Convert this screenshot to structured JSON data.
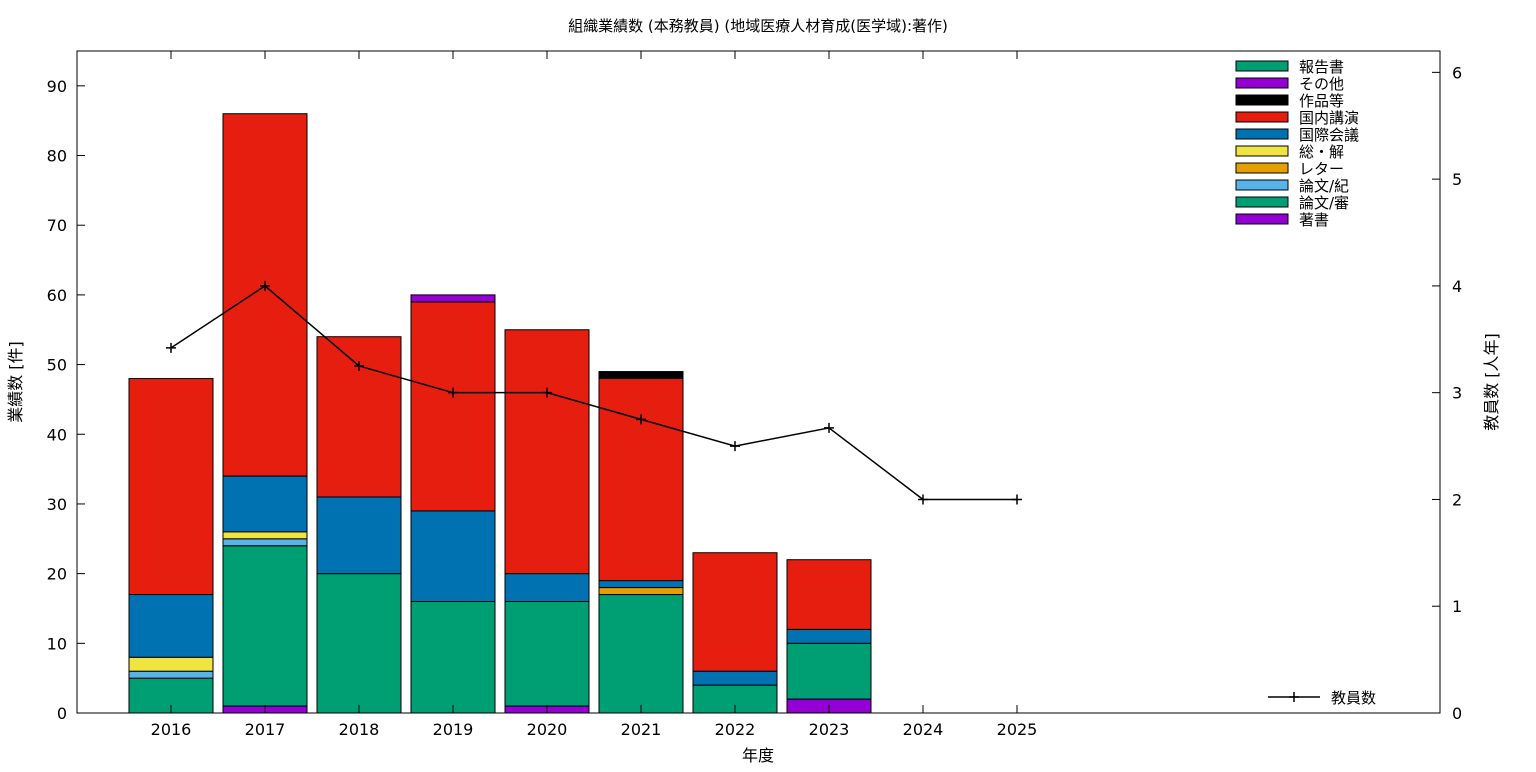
{
  "chart_data": {
    "type": "bar",
    "stacked": true,
    "title": "組織業績数 (本務教員) (地域医療人材育成(医学域):著作)",
    "xlabel": "年度",
    "ylabel": "業績数 [件]",
    "y2label": "教員数 [人年]",
    "categories": [
      "2016",
      "2017",
      "2018",
      "2019",
      "2020",
      "2021",
      "2022",
      "2023",
      "2024",
      "2025"
    ],
    "ylim": [
      0,
      95
    ],
    "yticks": [
      0,
      10,
      20,
      30,
      40,
      50,
      60,
      70,
      80,
      90
    ],
    "y2lim": [
      0,
      6.2
    ],
    "y2ticks": [
      0,
      1,
      2,
      3,
      4,
      5,
      6
    ],
    "grid": false,
    "legend_position": "top-right",
    "series": [
      {
        "name": "著書",
        "color": "#9400d3",
        "values": [
          0,
          1,
          0,
          0,
          1,
          0,
          0,
          2,
          0,
          0
        ]
      },
      {
        "name": "論文/審",
        "color": "#009e73",
        "values": [
          5,
          23,
          20,
          16,
          15,
          17,
          4,
          8,
          0,
          0
        ]
      },
      {
        "name": "論文/紀",
        "color": "#56b4e9",
        "values": [
          1,
          1,
          0,
          0,
          0,
          0,
          0,
          0,
          0,
          0
        ]
      },
      {
        "name": "レター",
        "color": "#e69f00",
        "values": [
          0,
          0,
          0,
          0,
          0,
          1,
          0,
          0,
          0,
          0
        ]
      },
      {
        "name": "総・解",
        "color": "#f0e442",
        "values": [
          2,
          1,
          0,
          0,
          0,
          0,
          0,
          0,
          0,
          0
        ]
      },
      {
        "name": "国際会議",
        "color": "#0072b2",
        "values": [
          9,
          8,
          11,
          13,
          4,
          1,
          2,
          2,
          0,
          0
        ]
      },
      {
        "name": "国内講演",
        "color": "#e51e10",
        "values": [
          31,
          52,
          23,
          30,
          35,
          29,
          17,
          10,
          0,
          0
        ]
      },
      {
        "name": "作品等",
        "color": "#000000",
        "values": [
          0,
          0,
          0,
          0,
          0,
          1,
          0,
          0,
          0,
          0
        ]
      },
      {
        "name": "その他",
        "color": "#9400d3",
        "values": [
          0,
          0,
          0,
          1,
          0,
          0,
          0,
          0,
          0,
          0
        ]
      },
      {
        "name": "報告書",
        "color": "#009e73",
        "values": [
          0,
          0,
          0,
          0,
          0,
          0,
          0,
          0,
          0,
          0
        ]
      }
    ],
    "line_series": {
      "name": "教員数",
      "axis": "y2",
      "color": "#000000",
      "values": [
        3.42,
        4.0,
        3.25,
        3.0,
        3.0,
        2.75,
        2.5,
        2.67,
        2.0,
        2.0
      ]
    }
  }
}
